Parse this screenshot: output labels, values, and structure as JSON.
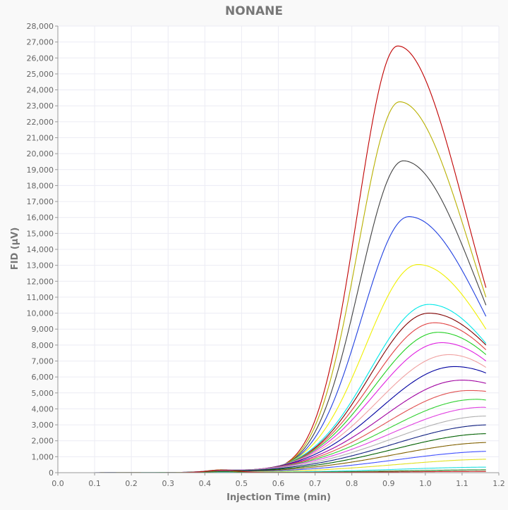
{
  "chart_data": {
    "type": "line",
    "title": "NONANE",
    "xlabel": "Injection Time (min)",
    "ylabel": "FID (µV)",
    "xlim": [
      0.0,
      1.2
    ],
    "ylim": [
      0,
      28000
    ],
    "x_ticks": [
      0.0,
      0.1,
      0.2,
      0.3,
      0.4,
      0.5,
      0.6,
      0.7,
      0.8,
      0.9,
      1.0,
      1.1,
      1.2
    ],
    "x_tick_labels": [
      "0.0",
      "0.1",
      "0.2",
      "0.3",
      "0.4",
      "0.5",
      "0.6",
      "0.7",
      "0.8",
      "0.9",
      "1.0",
      "1.1",
      "1.2"
    ],
    "y_ticks": [
      0,
      1000,
      2000,
      3000,
      4000,
      5000,
      6000,
      7000,
      8000,
      9000,
      10000,
      11000,
      12000,
      13000,
      14000,
      15000,
      16000,
      17000,
      18000,
      19000,
      20000,
      21000,
      22000,
      23000,
      24000,
      25000,
      26000,
      27000,
      28000
    ],
    "y_tick_labels": [
      "0",
      "1,000",
      "2,000",
      "3,000",
      "4,000",
      "5,000",
      "6,000",
      "7,000",
      "8,000",
      "9,000",
      "10,000",
      "11,000",
      "12,000",
      "13,000",
      "14,000",
      "15,000",
      "16,000",
      "17,000",
      "18,000",
      "19,000",
      "20,000",
      "21,000",
      "22,000",
      "23,000",
      "24,000",
      "25,000",
      "26,000",
      "27,000",
      "28,000"
    ],
    "grid": true,
    "legend": "none",
    "x_end": 1.165,
    "series": [
      {
        "color": "#c00000",
        "peak_x": 0.925,
        "peak_y": 26750,
        "end_y": 11600,
        "bump_y": 180
      },
      {
        "color": "#b8b000",
        "peak_x": 0.93,
        "peak_y": 23250,
        "end_y": 11000,
        "bump_y": 170
      },
      {
        "color": "#404040",
        "peak_x": 0.94,
        "peak_y": 19550,
        "end_y": 10500,
        "bump_y": 160
      },
      {
        "color": "#2040e0",
        "peak_x": 0.955,
        "peak_y": 16050,
        "end_y": 9800,
        "bump_y": 150
      },
      {
        "color": "#f0f000",
        "peak_x": 0.98,
        "peak_y": 13050,
        "end_y": 9000,
        "bump_y": 140
      },
      {
        "color": "#00e8e8",
        "peak_x": 1.01,
        "peak_y": 10550,
        "end_y": 8100,
        "bump_y": 130
      },
      {
        "color": "#800000",
        "peak_x": 1.01,
        "peak_y": 10000,
        "end_y": 8000,
        "bump_y": 125
      },
      {
        "color": "#e04040",
        "peak_x": 1.025,
        "peak_y": 9400,
        "end_y": 7700,
        "bump_y": 120
      },
      {
        "color": "#20d020",
        "peak_x": 1.035,
        "peak_y": 8800,
        "end_y": 7400,
        "bump_y": 115
      },
      {
        "color": "#e020e0",
        "peak_x": 1.045,
        "peak_y": 8150,
        "end_y": 7000,
        "bump_y": 110
      },
      {
        "color": "#f0a0a0",
        "peak_x": 1.065,
        "peak_y": 7400,
        "end_y": 6600,
        "bump_y": 105
      },
      {
        "color": "#0000a0",
        "peak_x": 1.08,
        "peak_y": 6650,
        "end_y": 6250,
        "bump_y": 100
      },
      {
        "color": "#a000a0",
        "peak_x": 1.1,
        "peak_y": 5800,
        "end_y": 5600,
        "bump_y": 95
      },
      {
        "color": "#e05050",
        "peak_x": 1.12,
        "peak_y": 5150,
        "end_y": 5100,
        "bump_y": 90
      },
      {
        "color": "#30d030",
        "peak_x": 1.14,
        "peak_y": 4600,
        "end_y": 4550,
        "bump_y": 85
      },
      {
        "color": "#e040e0",
        "peak_x": 1.16,
        "peak_y": 4100,
        "end_y": 4080,
        "bump_y": 80
      },
      {
        "color": "#b0b0b0",
        "peak_x": 1.17,
        "peak_y": 3550,
        "end_y": 3500,
        "bump_y": 75
      },
      {
        "color": "#102080",
        "peak_x": 1.18,
        "peak_y": 3000,
        "end_y": 2950,
        "bump_y": 70
      },
      {
        "color": "#006000",
        "peak_x": 1.18,
        "peak_y": 2450,
        "end_y": 2380,
        "bump_y": 65
      },
      {
        "color": "#806000",
        "peak_x": 1.19,
        "peak_y": 1900,
        "end_y": 1800,
        "bump_y": 60
      },
      {
        "color": "#4050ff",
        "peak_x": 1.2,
        "peak_y": 1350,
        "end_y": 1250,
        "bump_y": 55
      },
      {
        "color": "#e0e020",
        "peak_x": 1.2,
        "peak_y": 850,
        "end_y": 800,
        "bump_y": 50
      },
      {
        "color": "#20e0e0",
        "peak_x": 1.2,
        "peak_y": 350,
        "end_y": 300,
        "bump_y": 40
      },
      {
        "color": "#208020",
        "peak_x": 1.2,
        "peak_y": 180,
        "end_y": 150,
        "bump_y": 60
      },
      {
        "color": "#c01010",
        "peak_x": 1.2,
        "peak_y": 80,
        "end_y": 70,
        "bump_y": 140
      }
    ]
  }
}
